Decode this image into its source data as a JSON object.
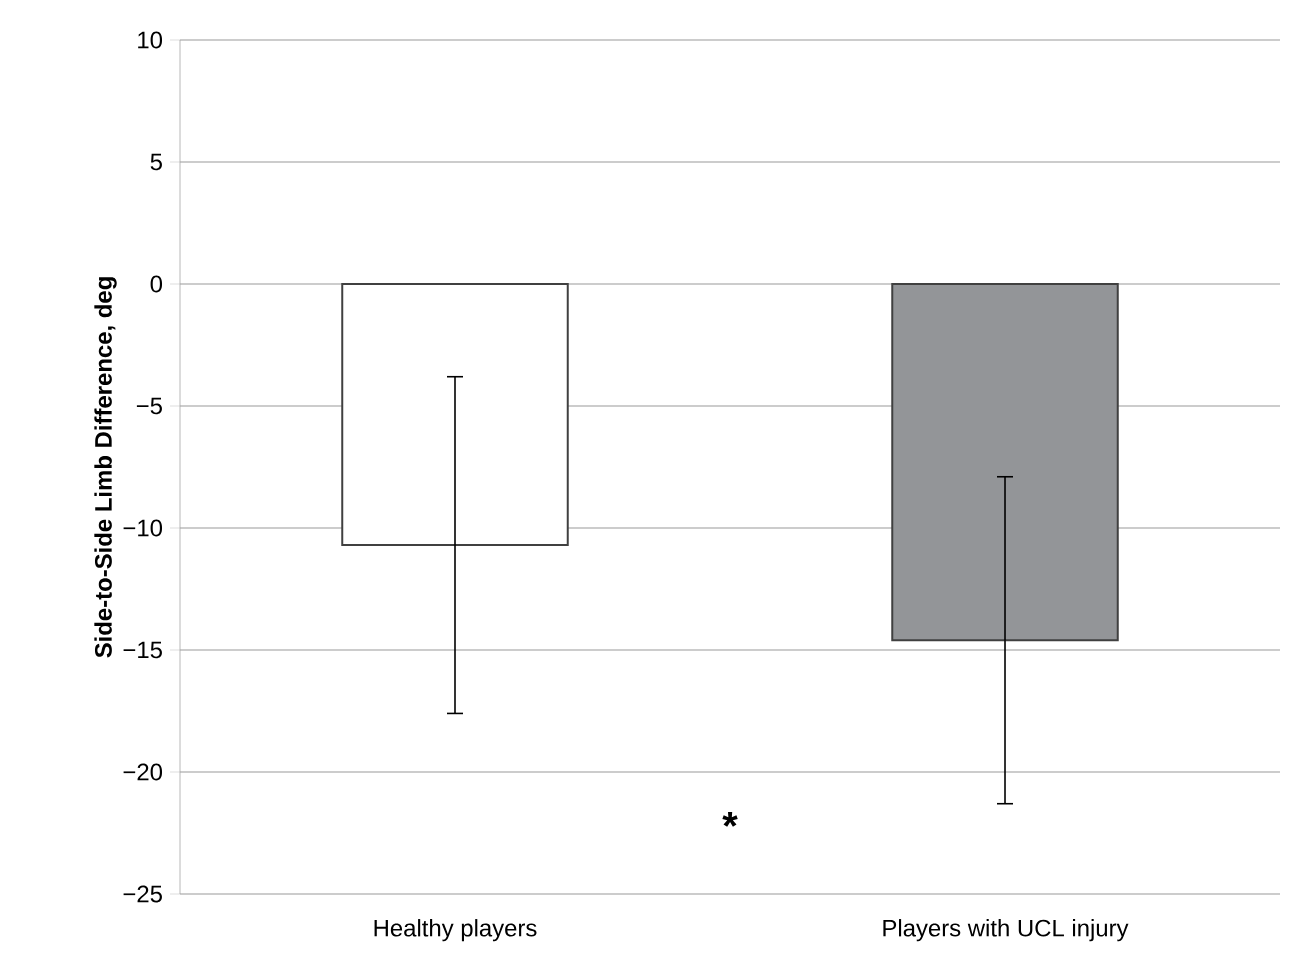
{
  "chart_data": {
    "type": "bar",
    "ylabel": "Side-to-Side Limb Difference, deg",
    "categories": [
      "Healthy players",
      "Players with UCL injury"
    ],
    "values": [
      -10.7,
      -14.6
    ],
    "errors": [
      6.9,
      6.7
    ],
    "colors": [
      "#ffffff",
      "#939598"
    ],
    "ylim": [
      -25,
      10
    ],
    "yticks": [
      {
        "value": -25,
        "label": "−25"
      },
      {
        "value": -20,
        "label": "−20"
      },
      {
        "value": -15,
        "label": "−15"
      },
      {
        "value": -10,
        "label": "−10"
      },
      {
        "value": -5,
        "label": "−5"
      },
      0,
      5,
      10
    ],
    "grid": "y",
    "annotations": [
      "*"
    ]
  }
}
